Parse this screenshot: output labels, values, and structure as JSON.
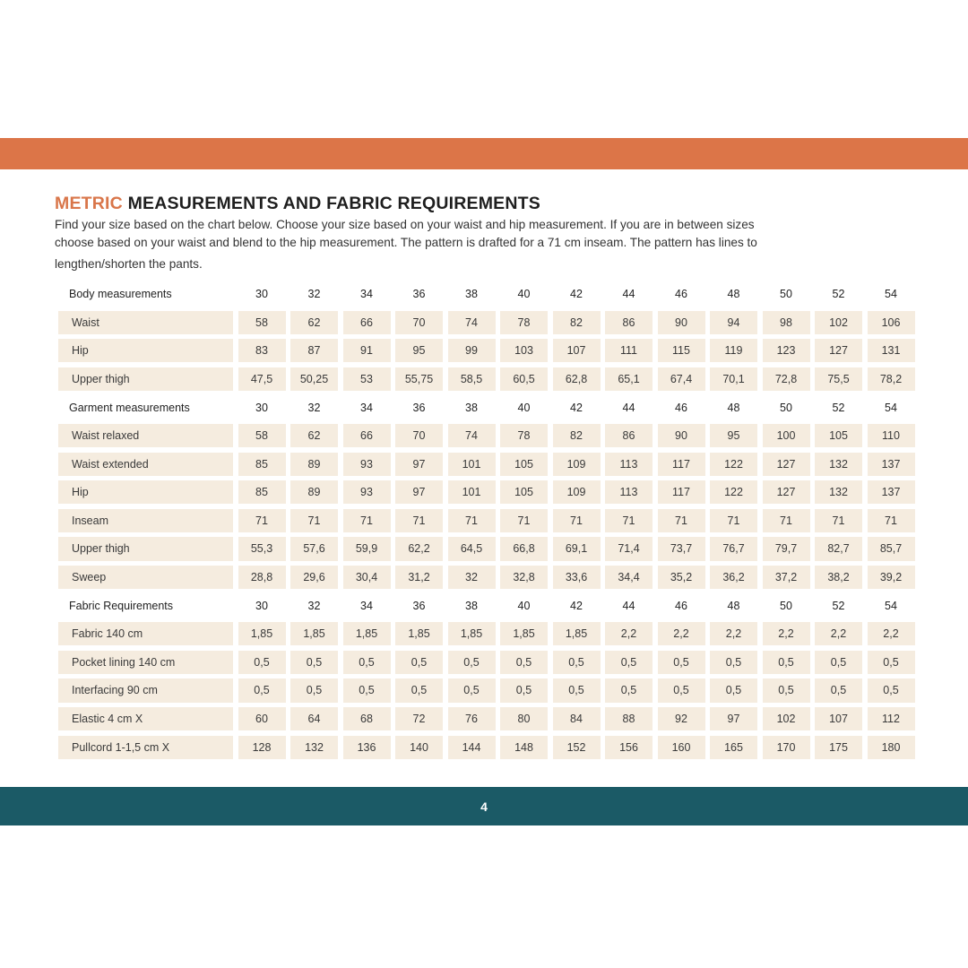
{
  "title": {
    "accent": "METRIC",
    "rest": " MEASUREMENTS AND FABRIC REQUIREMENTS"
  },
  "intro": [
    "Find your size based on the chart below. Choose your size based on your waist and hip measurement. If you are in between sizes",
    "choose based on your waist and blend to the hip measurement. The pattern is drafted for a 71 cm inseam. The pattern has lines to",
    "lengthen/shorten the pants."
  ],
  "sections": [
    {
      "header": "Body measurements",
      "sizes": [
        "30",
        "32",
        "34",
        "36",
        "38",
        "40",
        "42",
        "44",
        "46",
        "48",
        "50",
        "52",
        "54"
      ],
      "rows": [
        {
          "label": "Waist",
          "values": [
            "58",
            "62",
            "66",
            "70",
            "74",
            "78",
            "82",
            "86",
            "90",
            "94",
            "98",
            "102",
            "106"
          ]
        },
        {
          "label": "Hip",
          "values": [
            "83",
            "87",
            "91",
            "95",
            "99",
            "103",
            "107",
            "111",
            "115",
            "119",
            "123",
            "127",
            "131"
          ]
        },
        {
          "label": "Upper thigh",
          "values": [
            "47,5",
            "50,25",
            "53",
            "55,75",
            "58,5",
            "60,5",
            "62,8",
            "65,1",
            "67,4",
            "70,1",
            "72,8",
            "75,5",
            "78,2"
          ]
        }
      ]
    },
    {
      "header": "Garment measurements",
      "sizes": [
        "30",
        "32",
        "34",
        "36",
        "38",
        "40",
        "42",
        "44",
        "46",
        "48",
        "50",
        "52",
        "54"
      ],
      "rows": [
        {
          "label": "Waist relaxed",
          "values": [
            "58",
            "62",
            "66",
            "70",
            "74",
            "78",
            "82",
            "86",
            "90",
            "95",
            "100",
            "105",
            "110"
          ]
        },
        {
          "label": "Waist extended",
          "values": [
            "85",
            "89",
            "93",
            "97",
            "101",
            "105",
            "109",
            "113",
            "117",
            "122",
            "127",
            "132",
            "137"
          ]
        },
        {
          "label": "Hip",
          "values": [
            "85",
            "89",
            "93",
            "97",
            "101",
            "105",
            "109",
            "113",
            "117",
            "122",
            "127",
            "132",
            "137"
          ]
        },
        {
          "label": "Inseam",
          "values": [
            "71",
            "71",
            "71",
            "71",
            "71",
            "71",
            "71",
            "71",
            "71",
            "71",
            "71",
            "71",
            "71"
          ]
        },
        {
          "label": "Upper thigh",
          "values": [
            "55,3",
            "57,6",
            "59,9",
            "62,2",
            "64,5",
            "66,8",
            "69,1",
            "71,4",
            "73,7",
            "76,7",
            "79,7",
            "82,7",
            "85,7"
          ]
        },
        {
          "label": "Sweep",
          "values": [
            "28,8",
            "29,6",
            "30,4",
            "31,2",
            "32",
            "32,8",
            "33,6",
            "34,4",
            "35,2",
            "36,2",
            "37,2",
            "38,2",
            "39,2"
          ]
        }
      ]
    },
    {
      "header": "Fabric Requirements",
      "sizes": [
        "30",
        "32",
        "34",
        "36",
        "38",
        "40",
        "42",
        "44",
        "46",
        "48",
        "50",
        "52",
        "54"
      ],
      "rows": [
        {
          "label": "Fabric 140 cm",
          "values": [
            "1,85",
            "1,85",
            "1,85",
            "1,85",
            "1,85",
            "1,85",
            "1,85",
            "2,2",
            "2,2",
            "2,2",
            "2,2",
            "2,2",
            "2,2"
          ]
        },
        {
          "label": "Pocket lining 140 cm",
          "values": [
            "0,5",
            "0,5",
            "0,5",
            "0,5",
            "0,5",
            "0,5",
            "0,5",
            "0,5",
            "0,5",
            "0,5",
            "0,5",
            "0,5",
            "0,5"
          ]
        },
        {
          "label": "Interfacing 90 cm",
          "values": [
            "0,5",
            "0,5",
            "0,5",
            "0,5",
            "0,5",
            "0,5",
            "0,5",
            "0,5",
            "0,5",
            "0,5",
            "0,5",
            "0,5",
            "0,5"
          ]
        },
        {
          "label": "Elastic 4 cm X",
          "values": [
            "60",
            "64",
            "68",
            "72",
            "76",
            "80",
            "84",
            "88",
            "92",
            "97",
            "102",
            "107",
            "112"
          ]
        },
        {
          "label": "Pullcord 1-1,5 cm X",
          "values": [
            "128",
            "132",
            "136",
            "140",
            "144",
            "148",
            "152",
            "156",
            "160",
            "165",
            "170",
            "175",
            "180"
          ]
        }
      ]
    }
  ],
  "footer": {
    "page_number": "4"
  },
  "colors": {
    "accent": "#dc7548",
    "footer": "#1b5a66",
    "cell": "#f5ecdf"
  }
}
